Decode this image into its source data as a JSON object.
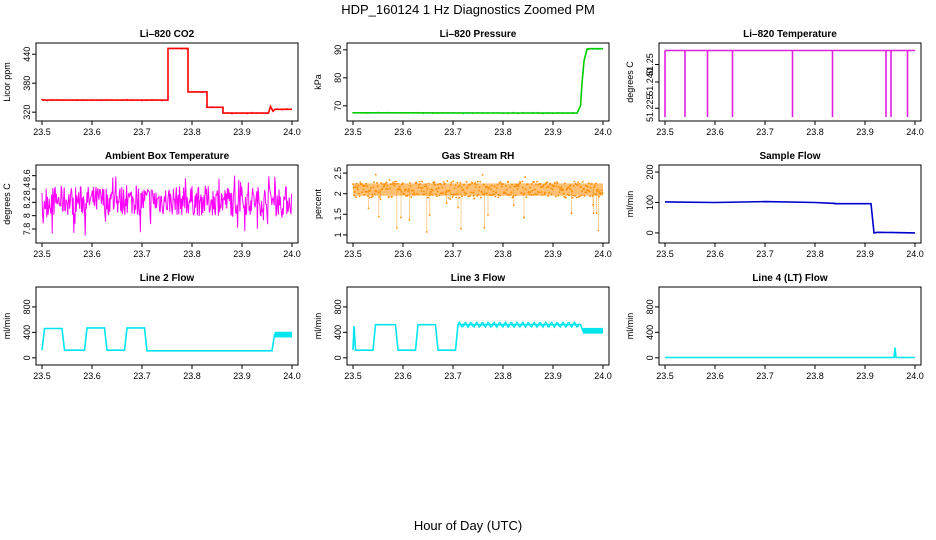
{
  "page": {
    "title": "HDP_160124  1 Hz Diagnostics Zoomed PM",
    "xlabel": "Hour of Day (UTC)"
  },
  "chart_data": [
    {
      "type": "line",
      "title": "Li–820 CO2",
      "ylabel": "Licor ppm",
      "xlim": [
        23.5,
        24.0
      ],
      "ylim": [
        310,
        455
      ],
      "yticks": [
        320,
        380,
        440
      ],
      "xticks": [
        "23.5",
        "23.6",
        "23.7",
        "23.8",
        "23.9",
        "24.0"
      ],
      "color": "#ff0000",
      "series": [
        {
          "x": [
            23.5,
            23.752,
            23.752,
            23.792,
            23.792,
            23.83,
            23.83,
            23.862,
            23.862,
            23.953,
            23.957,
            23.962,
            23.966,
            24.0
          ],
          "y": [
            345,
            345,
            452,
            452,
            362,
            362,
            330,
            330,
            318,
            318,
            332,
            322,
            326,
            326
          ]
        }
      ]
    },
    {
      "type": "line",
      "title": "Li–820 Pressure",
      "ylabel": "kPa",
      "xlim": [
        23.5,
        24.0
      ],
      "ylim": [
        66,
        91
      ],
      "yticks": [
        70,
        80,
        90
      ],
      "xticks": [
        "23.5",
        "23.6",
        "23.7",
        "23.8",
        "23.9",
        "24.0"
      ],
      "color": "#00cc00",
      "series": [
        {
          "x": [
            23.5,
            23.948,
            23.955,
            23.958,
            23.962,
            23.968,
            23.974,
            24.0
          ],
          "y": [
            67.5,
            67.4,
            70,
            78,
            86,
            90.3,
            90.4,
            90.4
          ]
        }
      ]
    },
    {
      "type": "line",
      "title": "Li–820 Temperature",
      "ylabel": "degrees C",
      "xlim": [
        23.5,
        24.0
      ],
      "ylim": [
        51.22,
        51.26
      ],
      "yticks": [
        51.225,
        51.24,
        51.25
      ],
      "ytick_labels": [
        "51.225",
        "51.240",
        "51.25"
      ],
      "xticks": [
        "23.5",
        "23.6",
        "23.7",
        "23.8",
        "23.9",
        "24.0"
      ],
      "color": "#e020e0",
      "baseline": 51.258,
      "dips_x": [
        23.5,
        23.54,
        23.585,
        23.635,
        23.755,
        23.835,
        23.942,
        23.952,
        23.985
      ],
      "dip_to": 51.22
    },
    {
      "type": "line",
      "title": "Ambient Box Temperature",
      "ylabel": "degrees C",
      "xlim": [
        23.5,
        24.0
      ],
      "ylim": [
        7.65,
        8.7
      ],
      "yticks": [
        7.8,
        8.0,
        8.2,
        8.4,
        8.6
      ],
      "xticks": [
        "23.5",
        "23.6",
        "23.7",
        "23.8",
        "23.9",
        "24.0"
      ],
      "color": "#ff00ff",
      "noise": {
        "center": 8.22,
        "low": 8.0,
        "high": 8.45,
        "spike_low": 7.7,
        "spike_high": 8.65
      }
    },
    {
      "type": "scatter",
      "title": "Gas Stream RH",
      "ylabel": "percent",
      "xlim": [
        23.5,
        24.0
      ],
      "ylim": [
        0.9,
        2.6
      ],
      "yticks": [
        1.0,
        1.5,
        2.0,
        2.5
      ],
      "xticks": [
        "23.5",
        "23.6",
        "23.7",
        "23.8",
        "23.9",
        "24.0"
      ],
      "color": "#ff8c00",
      "noise": {
        "center": 2.1,
        "low": 1.9,
        "high": 2.3,
        "spike_low": 0.95,
        "spike_high": 2.5
      }
    },
    {
      "type": "line",
      "title": "Sample Flow",
      "ylabel": "ml/min",
      "xlim": [
        23.5,
        24.0
      ],
      "ylim": [
        -20,
        210
      ],
      "yticks": [
        0,
        100,
        200
      ],
      "xticks": [
        "23.5",
        "23.6",
        "23.7",
        "23.8",
        "23.9",
        "24.0"
      ],
      "color": "#0000cc",
      "series": [
        {
          "x": [
            23.5,
            23.6,
            23.7,
            23.8,
            23.84,
            23.84,
            23.912,
            23.918,
            23.925,
            24.0
          ],
          "y": [
            102,
            100,
            103,
            100,
            97,
            96,
            96,
            0,
            2,
            0
          ]
        }
      ]
    },
    {
      "type": "line",
      "title": "Line 2 Flow",
      "ylabel": "ml/min",
      "xlim": [
        23.5,
        24.0
      ],
      "ylim": [
        -50,
        1050
      ],
      "yticks": [
        0,
        400,
        800
      ],
      "xticks": [
        "23.5",
        "23.6",
        "23.7",
        "23.8",
        "23.9",
        "24.0"
      ],
      "color": "#00e5ee",
      "series": [
        {
          "x": [
            23.5,
            23.505,
            23.54,
            23.545,
            23.585,
            23.59,
            23.625,
            23.63,
            23.665,
            23.67,
            23.705,
            23.71,
            23.96,
            23.965,
            24.0
          ],
          "y": [
            120,
            460,
            460,
            120,
            120,
            470,
            470,
            120,
            120,
            470,
            470,
            110,
            110,
            360,
            360
          ]
        }
      ]
    },
    {
      "type": "line",
      "title": "Line 3 Flow",
      "ylabel": "ml/min",
      "xlim": [
        23.5,
        24.0
      ],
      "ylim": [
        -50,
        1050
      ],
      "yticks": [
        0,
        400,
        800
      ],
      "xticks": [
        "23.5",
        "23.6",
        "23.7",
        "23.8",
        "23.9",
        "24.0"
      ],
      "color": "#00e5ee",
      "series": [
        {
          "x": [
            23.5,
            23.502,
            23.505,
            23.54,
            23.545,
            23.585,
            23.59,
            23.625,
            23.63,
            23.665,
            23.67,
            23.705,
            23.71,
            23.955,
            23.96,
            24.0
          ],
          "y": [
            120,
            500,
            120,
            120,
            520,
            520,
            120,
            120,
            520,
            520,
            120,
            120,
            520,
            520,
            420,
            420
          ]
        }
      ]
    },
    {
      "type": "line",
      "title": "Line 4 (LT) Flow",
      "ylabel": "ml/min",
      "xlim": [
        23.5,
        24.0
      ],
      "ylim": [
        -50,
        1050
      ],
      "yticks": [
        0,
        400,
        800
      ],
      "xticks": [
        "23.5",
        "23.6",
        "23.7",
        "23.8",
        "23.9",
        "24.0"
      ],
      "color": "#00e5ee",
      "series": [
        {
          "x": [
            23.5,
            23.958,
            23.96,
            23.962,
            24.0
          ],
          "y": [
            5,
            5,
            160,
            5,
            5
          ]
        }
      ]
    }
  ]
}
